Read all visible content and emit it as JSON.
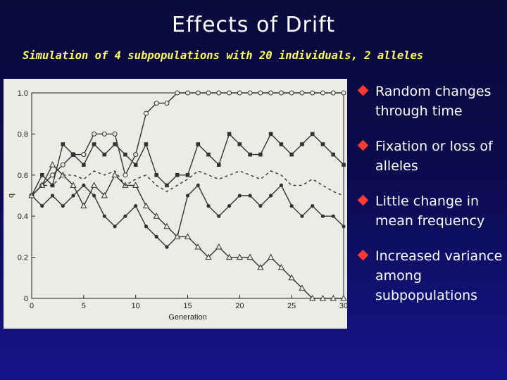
{
  "title": "Effects of Drift",
  "subtitle": "Simulation of 4 subpopulations with 20 individuals, 2 alleles",
  "bullets": [
    {
      "text": "Random changes through time"
    },
    {
      "text": "Fixation or loss of alleles"
    },
    {
      "text": "Little change in mean frequency"
    },
    {
      "text": "Increased variance among subpopulations"
    }
  ],
  "colors": {
    "title": "#ffffff",
    "subtitle": "#ffff66",
    "bullet_marker": "#ff3b30",
    "chart_bg": "#ecebe7",
    "series_line": "#333333"
  },
  "chart_data": {
    "type": "line",
    "xlabel": "Generation",
    "ylabel": "q",
    "xlim": [
      0,
      30
    ],
    "ylim": [
      0,
      1.0
    ],
    "xticks": [
      0,
      5,
      10,
      15,
      20,
      25,
      30
    ],
    "yticks": [
      0,
      0.2,
      0.4,
      0.6,
      0.8,
      1.0
    ],
    "yticklabels": [
      "0",
      "0.2",
      "0.4",
      "0.6",
      "0.8",
      "1.0"
    ],
    "grid": false,
    "x": [
      0,
      1,
      2,
      3,
      4,
      5,
      6,
      7,
      8,
      9,
      10,
      11,
      12,
      13,
      14,
      15,
      16,
      17,
      18,
      19,
      20,
      21,
      22,
      23,
      24,
      25,
      26,
      27,
      28,
      29,
      30
    ],
    "series": [
      {
        "marker": "open-circle",
        "style": "solid",
        "values": [
          0.5,
          0.55,
          0.6,
          0.65,
          0.7,
          0.7,
          0.8,
          0.8,
          0.8,
          0.6,
          0.7,
          0.9,
          0.95,
          0.95,
          1.0,
          1.0,
          1.0,
          1.0,
          1.0,
          1.0,
          1.0,
          1.0,
          1.0,
          1.0,
          1.0,
          1.0,
          1.0,
          1.0,
          1.0,
          1.0,
          1.0
        ]
      },
      {
        "marker": "filled-square",
        "style": "solid",
        "values": [
          0.5,
          0.6,
          0.55,
          0.75,
          0.7,
          0.65,
          0.75,
          0.7,
          0.75,
          0.7,
          0.65,
          0.75,
          0.6,
          0.55,
          0.6,
          0.6,
          0.75,
          0.7,
          0.65,
          0.8,
          0.75,
          0.7,
          0.7,
          0.8,
          0.75,
          0.7,
          0.75,
          0.8,
          0.75,
          0.7,
          0.65
        ]
      },
      {
        "marker": "filled-circle",
        "style": "solid",
        "values": [
          0.5,
          0.45,
          0.5,
          0.45,
          0.5,
          0.55,
          0.5,
          0.4,
          0.35,
          0.4,
          0.45,
          0.35,
          0.3,
          0.25,
          0.3,
          0.5,
          0.55,
          0.45,
          0.4,
          0.45,
          0.5,
          0.5,
          0.45,
          0.5,
          0.55,
          0.45,
          0.4,
          0.45,
          0.4,
          0.4,
          0.35
        ]
      },
      {
        "marker": "open-triangle",
        "style": "solid",
        "values": [
          0.5,
          0.55,
          0.65,
          0.6,
          0.55,
          0.45,
          0.55,
          0.5,
          0.6,
          0.55,
          0.55,
          0.45,
          0.4,
          0.35,
          0.3,
          0.3,
          0.25,
          0.2,
          0.25,
          0.2,
          0.2,
          0.2,
          0.15,
          0.2,
          0.15,
          0.1,
          0.05,
          0.0,
          0.0,
          0.0,
          0.0
        ]
      },
      {
        "marker": "none",
        "style": "dashed",
        "values": [
          0.5,
          0.55,
          0.55,
          0.6,
          0.6,
          0.58,
          0.62,
          0.6,
          0.62,
          0.55,
          0.58,
          0.6,
          0.55,
          0.52,
          0.55,
          0.58,
          0.62,
          0.6,
          0.58,
          0.6,
          0.62,
          0.6,
          0.58,
          0.62,
          0.6,
          0.55,
          0.55,
          0.58,
          0.55,
          0.52,
          0.5
        ]
      }
    ]
  }
}
